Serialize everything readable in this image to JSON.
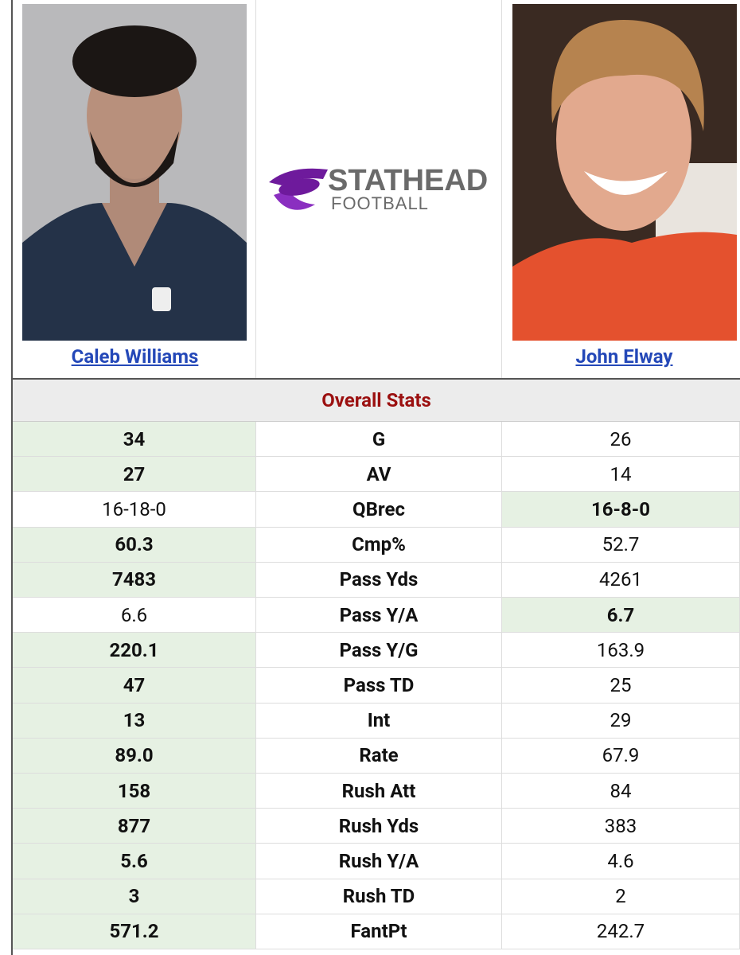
{
  "players": [
    {
      "name": "Caleb Williams"
    },
    {
      "name": "John Elway"
    }
  ],
  "logo": {
    "line1": "STATHEAD",
    "line2": "FOOTBALL"
  },
  "section_title": "Overall Stats",
  "rows": [
    {
      "left": "34",
      "stat": "G",
      "right": "26",
      "highlight": "left"
    },
    {
      "left": "27",
      "stat": "AV",
      "right": "14",
      "highlight": "left"
    },
    {
      "left": "16-18-0",
      "stat": "QBrec",
      "right": "16-8-0",
      "highlight": "right"
    },
    {
      "left": "60.3",
      "stat": "Cmp%",
      "right": "52.7",
      "highlight": "left"
    },
    {
      "left": "7483",
      "stat": "Pass Yds",
      "right": "4261",
      "highlight": "left"
    },
    {
      "left": "6.6",
      "stat": "Pass Y/A",
      "right": "6.7",
      "highlight": "right"
    },
    {
      "left": "220.1",
      "stat": "Pass Y/G",
      "right": "163.9",
      "highlight": "left"
    },
    {
      "left": "47",
      "stat": "Pass TD",
      "right": "25",
      "highlight": "left"
    },
    {
      "left": "13",
      "stat": "Int",
      "right": "29",
      "highlight": "left"
    },
    {
      "left": "89.0",
      "stat": "Rate",
      "right": "67.9",
      "highlight": "left"
    },
    {
      "left": "158",
      "stat": "Rush Att",
      "right": "84",
      "highlight": "left"
    },
    {
      "left": "877",
      "stat": "Rush Yds",
      "right": "383",
      "highlight": "left"
    },
    {
      "left": "5.6",
      "stat": "Rush Y/A",
      "right": "4.6",
      "highlight": "left"
    },
    {
      "left": "3",
      "stat": "Rush TD",
      "right": "2",
      "highlight": "left"
    },
    {
      "left": "571.2",
      "stat": "FantPt",
      "right": "242.7",
      "highlight": "left"
    }
  ]
}
